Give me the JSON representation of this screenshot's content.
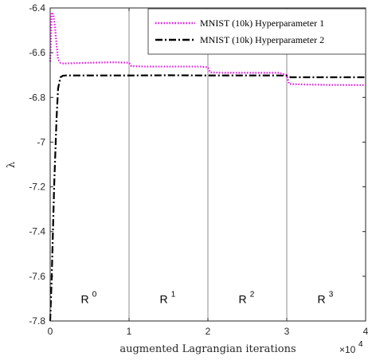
{
  "chart_data": {
    "type": "line",
    "xlabel": "augmented Lagrangian iterations",
    "ylabel": "λ",
    "x_multiplier": "×10^4",
    "x_multiplier_base": "×10",
    "x_multiplier_exp": "4",
    "xlim": [
      0,
      40000
    ],
    "ylim": [
      -7.8,
      -6.4
    ],
    "x_ticks": [
      0,
      10000,
      20000,
      30000,
      40000
    ],
    "x_tick_labels": [
      "0",
      "1",
      "2",
      "3",
      "4"
    ],
    "y_ticks": [
      -6.4,
      -6.6,
      -6.8,
      -7,
      -7.2,
      -7.4,
      -7.6,
      -7.8
    ],
    "y_tick_labels": [
      "-6.4",
      "-6.6",
      "-6.8",
      "-7",
      "-7.2",
      "-7.4",
      "-7.6",
      "-7.8"
    ],
    "vertical_lines": [
      10000,
      20000,
      30000
    ],
    "regions": [
      {
        "base": "R",
        "sup": "0",
        "x": 5000,
        "y": -7.72
      },
      {
        "base": "R",
        "sup": "1",
        "x": 15000,
        "y": -7.72
      },
      {
        "base": "R",
        "sup": "2",
        "x": 25000,
        "y": -7.72
      },
      {
        "base": "R",
        "sup": "3",
        "x": 35000,
        "y": -7.72
      }
    ],
    "legend_position": "top-right",
    "series": [
      {
        "name": "MNIST (10k) Hyperparameter 1",
        "color": "#ff00ff",
        "style": "dotted",
        "x": [
          0,
          200,
          400,
          600,
          800,
          1000,
          1300,
          1600,
          2000,
          3000,
          5000,
          8000,
          10000,
          10300,
          12000,
          15000,
          19000,
          20000,
          20300,
          22000,
          25000,
          29000,
          30000,
          30300,
          32000,
          35000,
          40000
        ],
        "y": [
          -6.64,
          -6.42,
          -6.43,
          -6.48,
          -6.56,
          -6.63,
          -6.645,
          -6.648,
          -6.648,
          -6.647,
          -6.645,
          -6.643,
          -6.645,
          -6.66,
          -6.662,
          -6.662,
          -6.662,
          -6.665,
          -6.688,
          -6.69,
          -6.69,
          -6.69,
          -6.7,
          -6.74,
          -6.742,
          -6.744,
          -6.745
        ]
      },
      {
        "name": "MNIST (10k) Hyperparameter 2",
        "color": "#000000",
        "style": "dashdot",
        "x": [
          0,
          200,
          500,
          800,
          1000,
          1300,
          1600,
          2000,
          5000,
          10000,
          15000,
          20000,
          25000,
          29000,
          30000,
          30500,
          35000,
          40000
        ],
        "y": [
          -7.8,
          -7.6,
          -7.2,
          -6.9,
          -6.76,
          -6.71,
          -6.703,
          -6.702,
          -6.702,
          -6.702,
          -6.701,
          -6.702,
          -6.702,
          -6.702,
          -6.703,
          -6.71,
          -6.71,
          -6.71
        ]
      }
    ]
  }
}
